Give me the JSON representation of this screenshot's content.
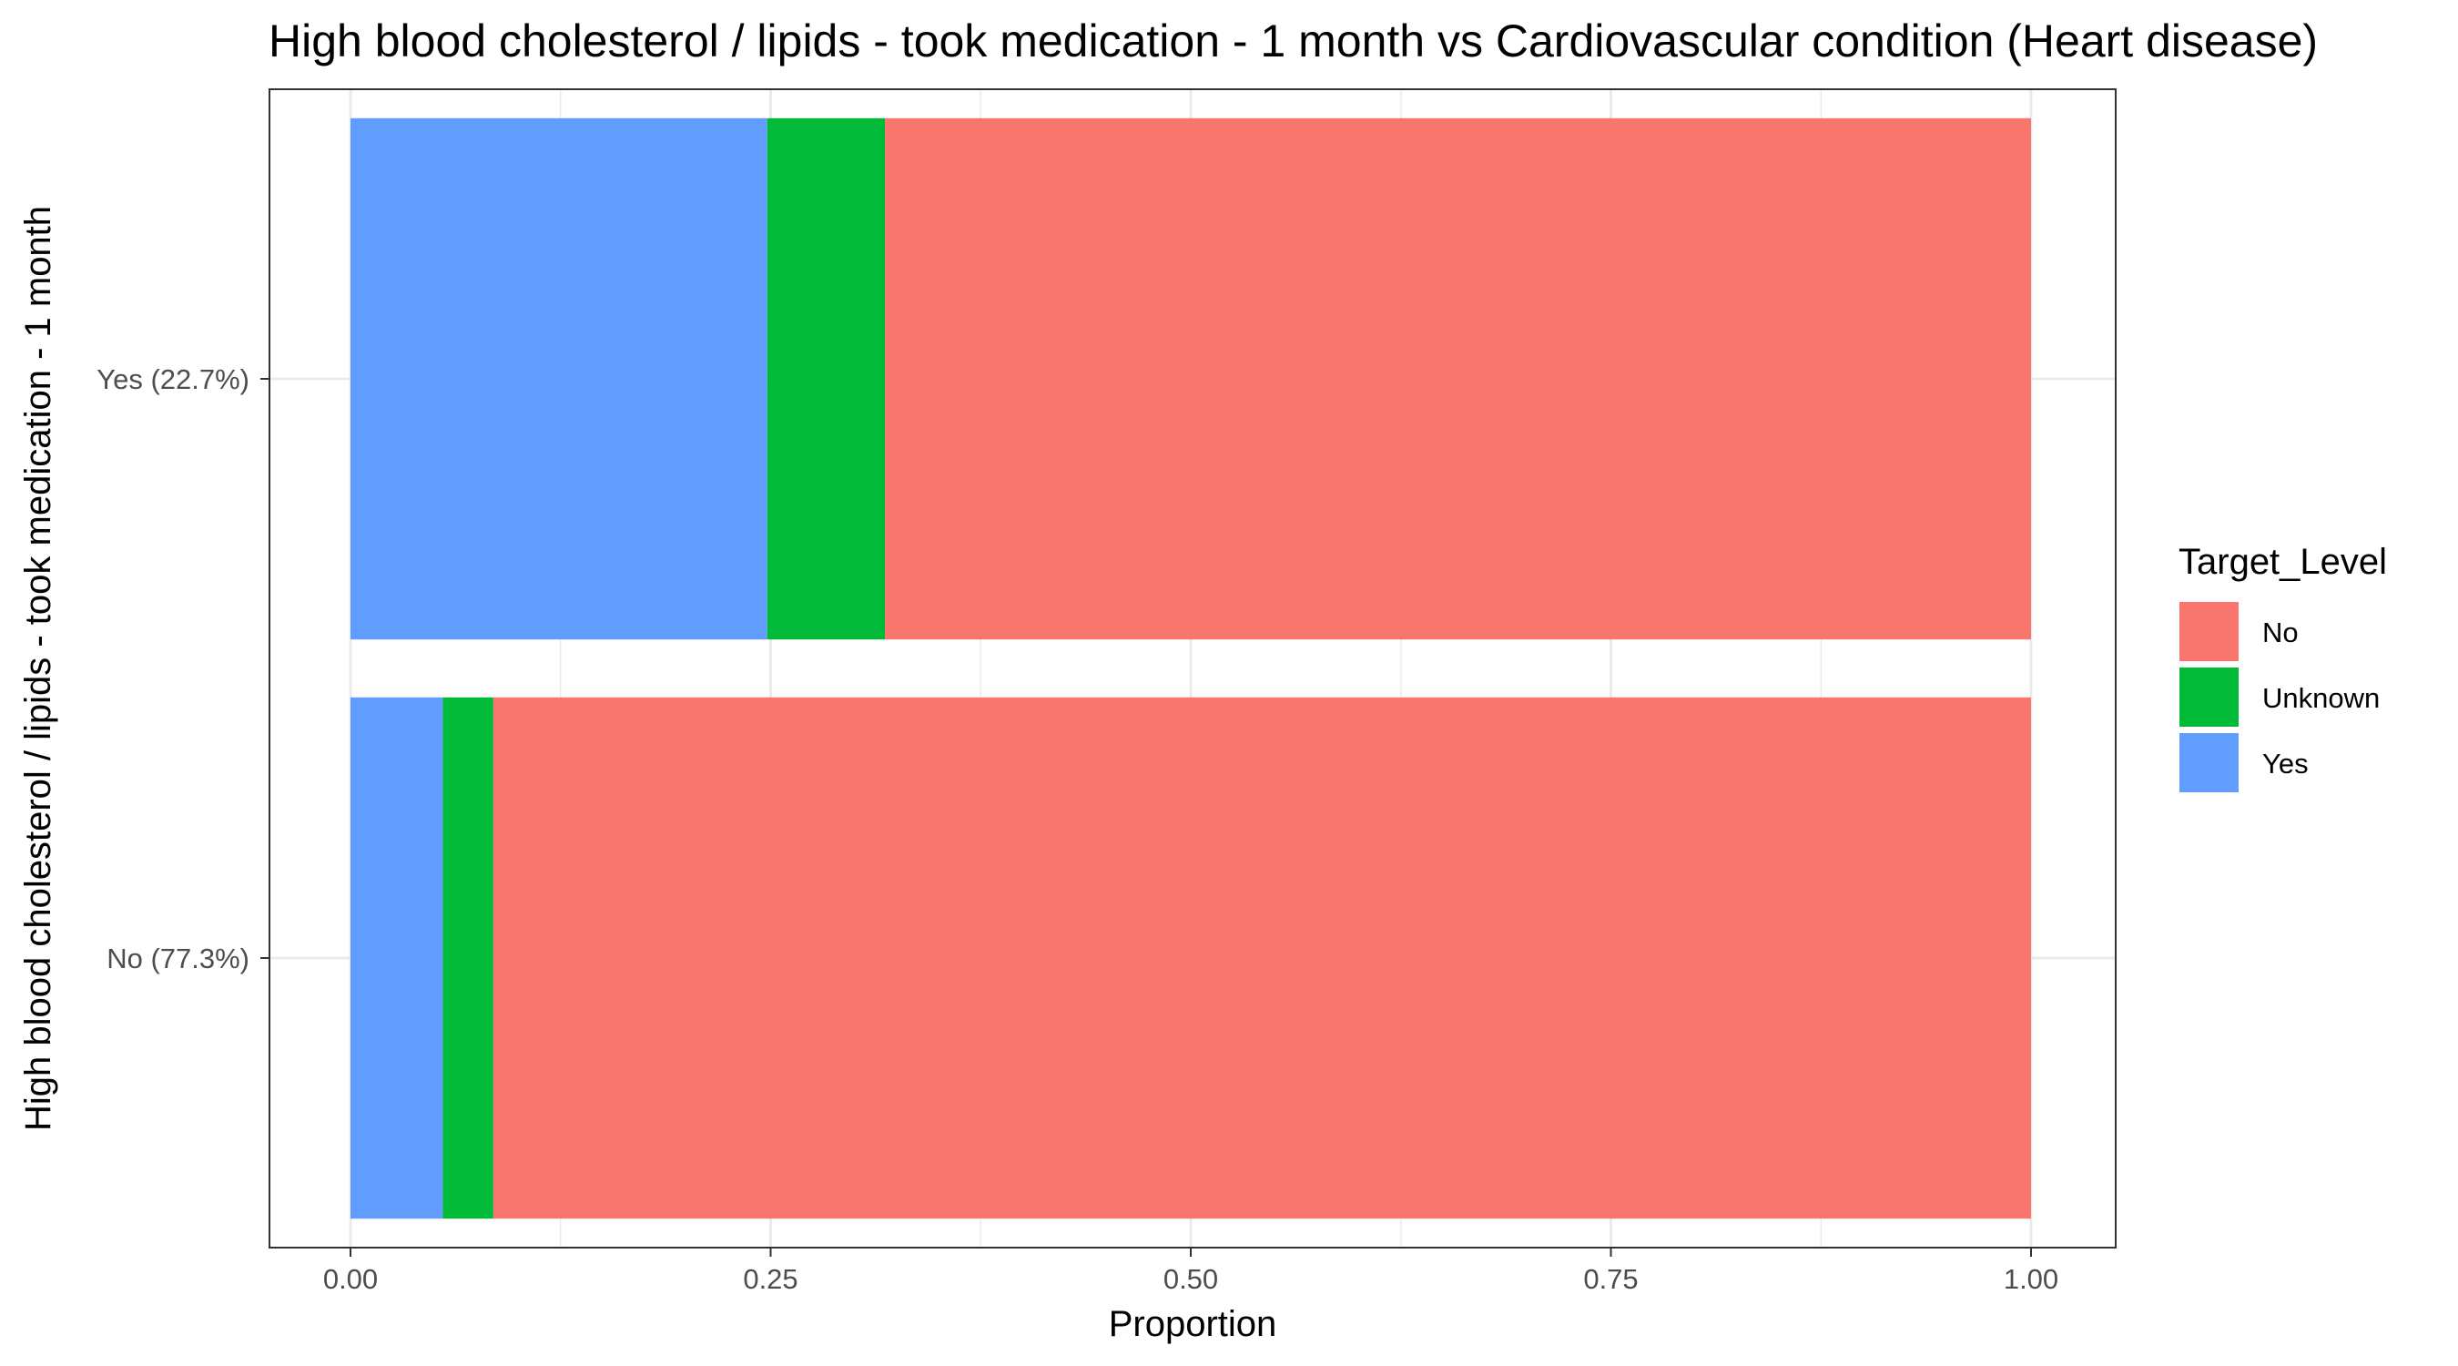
{
  "chart_data": {
    "type": "bar",
    "orientation": "horizontal",
    "stacked": true,
    "title": "High blood cholesterol / lipids - took medication - 1 month vs Cardiovascular condition (Heart disease)",
    "xlabel": "Proportion",
    "ylabel": "High blood cholesterol / lipids - took medication - 1 month",
    "xlim": [
      0,
      1
    ],
    "x_ticks": [
      "0.00",
      "0.25",
      "0.50",
      "0.75",
      "1.00"
    ],
    "categories": [
      "Yes (22.7%)",
      "No (77.3%)"
    ],
    "series": [
      {
        "name": "Yes",
        "color": "#619CFF",
        "values": [
          0.248,
          0.055
        ]
      },
      {
        "name": "Unknown",
        "color": "#00BA38",
        "values": [
          0.07,
          0.03
        ]
      },
      {
        "name": "No",
        "color": "#F8766D",
        "values": [
          0.682,
          0.915
        ]
      }
    ],
    "legend": {
      "title": "Target_Level",
      "entries": [
        "No",
        "Unknown",
        "Yes"
      ],
      "placement": "right"
    },
    "grid": true
  }
}
